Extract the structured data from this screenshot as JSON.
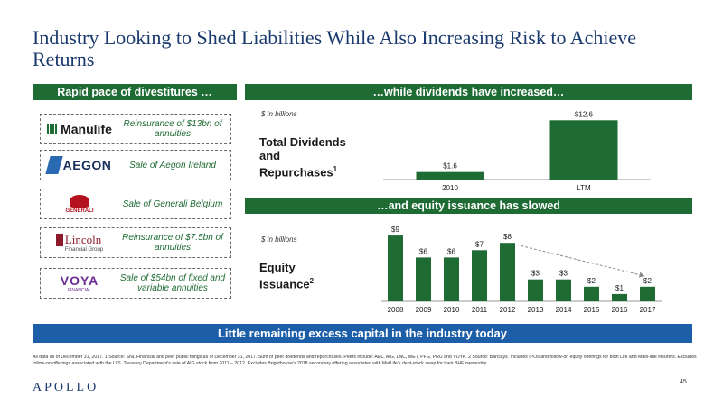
{
  "title": "Industry Looking to Shed Liabilities While Also Increasing Risk to Achieve Returns",
  "left_panel": {
    "header": "Rapid pace of divestitures …",
    "deals": [
      {
        "logo": "Manulife",
        "logo_icon": "manulife-logo",
        "description": "Reinsurance of $13bn of annuities"
      },
      {
        "logo": "AEGON",
        "logo_icon": "aegon-logo",
        "description": "Sale of Aegon Ireland"
      },
      {
        "logo": "GENERALI",
        "logo_icon": "generali-logo",
        "description": "Sale of Generali Belgium"
      },
      {
        "logo": "Lincoln",
        "logo_sub": "Financial Group",
        "logo_icon": "lincoln-logo",
        "description": "Reinsurance of $7.5bn of annuities"
      },
      {
        "logo": "VOYA",
        "logo_sub": "FINANCIAL",
        "logo_icon": "voya-logo",
        "description": "Sale of $54bn of fixed and variable annuities"
      }
    ]
  },
  "dividends": {
    "header": "…while dividends have increased…",
    "units": "$ in billions",
    "label_line1": "Total Dividends",
    "label_line2": "and",
    "label_line3": "Repurchases",
    "label_sup": "1"
  },
  "equity": {
    "header": "…and equity issuance has slowed",
    "units": "$ in billions",
    "label_line1": "Equity",
    "label_line2": "Issuance",
    "label_sup": "2"
  },
  "banner": "Little remaining excess capital in the industry today",
  "footnote": "All data as of December 31, 2017. 1 Source: SNL Financial and peer public filings as of December 31, 2017. Sum of peer dividends and repurchases. Peers include: AEL, AIG, LNC, MET, PFG, PRU and VOYA. 2 Source: Barclays. Includes IPOs and follow-on equity offerings for both Life and Multi-line insurers. Excludes follow-on offerings associated with the U.S. Treasury Department's sale of AIG stock from 2011 – 2012. Excludes Brighthouse's 2018 secondary offering associated with MetLife's debt-stock swap for their BHF ownership.",
  "brand": "APOLLO",
  "page_number": "45",
  "colors": {
    "green": "#1e6b34",
    "blue": "#1d5ea8",
    "title": "#1a3a6e"
  },
  "chart_data": [
    {
      "type": "bar",
      "categories": [
        "2010",
        "LTM"
      ],
      "values": [
        1.6,
        12.6
      ],
      "data_labels": [
        "$1.6",
        "$12.6"
      ],
      "ylim": [
        0,
        14
      ]
    },
    {
      "type": "bar",
      "categories": [
        "2008",
        "2009",
        "2010",
        "2011",
        "2012",
        "2013",
        "2014",
        "2015",
        "2016",
        "2017"
      ],
      "values": [
        9,
        6,
        6,
        7,
        8,
        3,
        3,
        2,
        1,
        2
      ],
      "data_labels": [
        "$9",
        "$6",
        "$6",
        "$7",
        "$8",
        "$3",
        "$3",
        "$2",
        "$1",
        "$2"
      ],
      "ylim": [
        0,
        10
      ],
      "trend_arrow": {
        "from": "2012",
        "to": "2017"
      }
    }
  ]
}
